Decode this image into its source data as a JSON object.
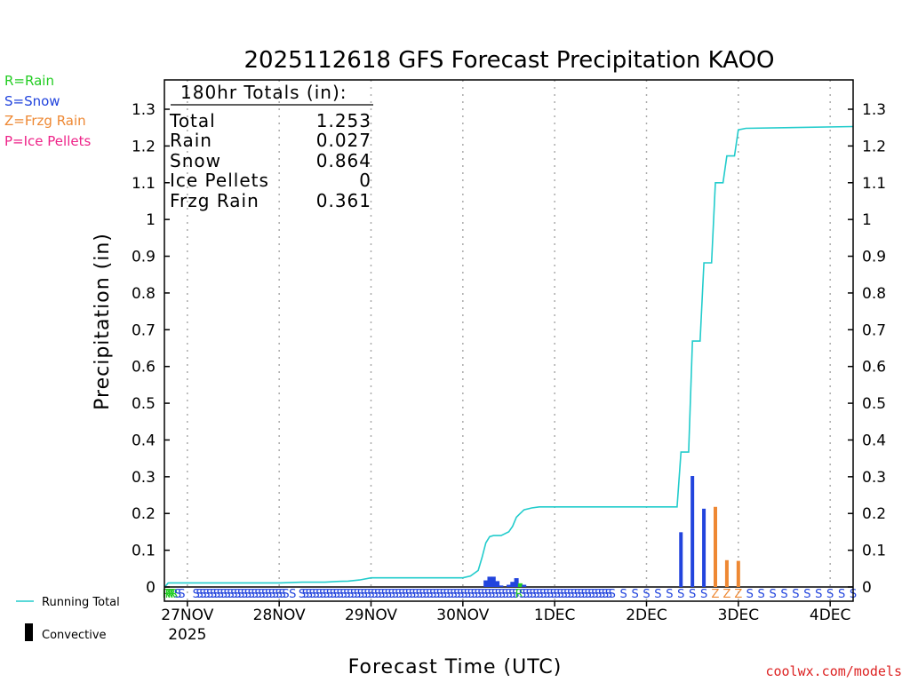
{
  "colors": {
    "rain": "#22cc22",
    "snow": "#2244dd",
    "frzg": "#ee8833",
    "ice": "#ee2288",
    "running_total": "#22cccc",
    "convective": "#000000",
    "watermark": "#dd2222"
  },
  "type_legend": [
    "R=Rain",
    "S=Snow",
    "Z=Frzg Rain",
    "P=Ice Pellets"
  ],
  "bottom_legend": {
    "running_total": "Running Total",
    "convective": "Convective"
  },
  "watermark": "coolwx.com/models",
  "totals_box": {
    "header": "180hr Totals (in):",
    "rows": [
      {
        "label": "Total",
        "value": "1.253"
      },
      {
        "label": "Rain",
        "value": "0.027"
      },
      {
        "label": "Snow",
        "value": "0.864"
      },
      {
        "label": "Ice Pellets",
        "value": "0"
      },
      {
        "label": "Frzg Rain",
        "value": "0.361"
      }
    ]
  },
  "chart_data": {
    "type": "bar",
    "title": "2025112618 GFS Forecast Precipitation KAOO",
    "xlabel": "Forecast Time (UTC)",
    "ylabel": "Precipitation (in)",
    "ylim": [
      0,
      1.35
    ],
    "yticks": [
      0,
      0.1,
      0.2,
      0.3,
      0.4,
      0.5,
      0.6,
      0.7,
      0.8,
      0.9,
      1,
      1.1,
      1.2,
      1.3
    ],
    "ytick_labels": [
      "0",
      "0.1",
      "0.2",
      "0.3",
      "0.4",
      "0.5",
      "0.6",
      "0.7",
      "0.8",
      "0.9",
      "1",
      "1.1",
      "1.2",
      "1.3"
    ],
    "x_unit": "forecast hour",
    "xlim": [
      0,
      180
    ],
    "day_ticks": [
      {
        "hour": 6,
        "label": "27NOV",
        "sub": "2025"
      },
      {
        "hour": 30,
        "label": "28NOV"
      },
      {
        "hour": 54,
        "label": "29NOV"
      },
      {
        "hour": 78,
        "label": "30NOV"
      },
      {
        "hour": 102,
        "label": "1DEC"
      },
      {
        "hour": 126,
        "label": "2DEC"
      },
      {
        "hour": 150,
        "label": "3DEC"
      },
      {
        "hour": 174,
        "label": "4DEC"
      }
    ],
    "bars": [
      {
        "hour": 84,
        "value": 0.018,
        "ptype": "S"
      },
      {
        "hour": 85,
        "value": 0.028,
        "ptype": "S"
      },
      {
        "hour": 86,
        "value": 0.028,
        "ptype": "S"
      },
      {
        "hour": 87,
        "value": 0.016,
        "ptype": "S"
      },
      {
        "hour": 88,
        "value": 0.004,
        "ptype": "S"
      },
      {
        "hour": 90,
        "value": 0.006,
        "ptype": "S"
      },
      {
        "hour": 91,
        "value": 0.014,
        "ptype": "S"
      },
      {
        "hour": 92,
        "value": 0.024,
        "ptype": "S"
      },
      {
        "hour": 93,
        "value": 0.01,
        "ptype": "R"
      },
      {
        "hour": 94,
        "value": 0.006,
        "ptype": "S"
      },
      {
        "hour": 135,
        "value": 0.149,
        "ptype": "S"
      },
      {
        "hour": 138,
        "value": 0.302,
        "ptype": "S"
      },
      {
        "hour": 141,
        "value": 0.213,
        "ptype": "S"
      },
      {
        "hour": 144,
        "value": 0.218,
        "ptype": "Z"
      },
      {
        "hour": 147,
        "value": 0.073,
        "ptype": "Z"
      },
      {
        "hour": 150,
        "value": 0.071,
        "ptype": "Z"
      }
    ],
    "running_total": [
      [
        0,
        0
      ],
      [
        0.5,
        0.005
      ],
      [
        1,
        0.011
      ],
      [
        12,
        0.011
      ],
      [
        24,
        0.011
      ],
      [
        30,
        0.011
      ],
      [
        36,
        0.013
      ],
      [
        42,
        0.013
      ],
      [
        45,
        0.015
      ],
      [
        48,
        0.016
      ],
      [
        51,
        0.019
      ],
      [
        54,
        0.025
      ],
      [
        60,
        0.025
      ],
      [
        78,
        0.025
      ],
      [
        80,
        0.03
      ],
      [
        82,
        0.045
      ],
      [
        83,
        0.08
      ],
      [
        84,
        0.12
      ],
      [
        85,
        0.137
      ],
      [
        86,
        0.14
      ],
      [
        88,
        0.14
      ],
      [
        90,
        0.15
      ],
      [
        91,
        0.165
      ],
      [
        92,
        0.19
      ],
      [
        93,
        0.2
      ],
      [
        94,
        0.21
      ],
      [
        96,
        0.215
      ],
      [
        98,
        0.218
      ],
      [
        134,
        0.218
      ],
      [
        135,
        0.367
      ],
      [
        137,
        0.367
      ],
      [
        138,
        0.669
      ],
      [
        140,
        0.669
      ],
      [
        141,
        0.882
      ],
      [
        143,
        0.882
      ],
      [
        144,
        1.1
      ],
      [
        146,
        1.1
      ],
      [
        147,
        1.173
      ],
      [
        149,
        1.173
      ],
      [
        150,
        1.244
      ],
      [
        152,
        1.248
      ],
      [
        180,
        1.253
      ]
    ],
    "ptype_strip": [
      {
        "hour": 0.5,
        "t": "R"
      },
      {
        "hour": 1.2,
        "t": "R"
      },
      {
        "hour": 1.9,
        "t": "R"
      },
      {
        "hour": 2.6,
        "t": "R"
      },
      {
        "hour": 3.5,
        "t": "S"
      },
      {
        "hour": 4.5,
        "t": "S"
      },
      {
        "hour": 8.3,
        "t": "S"
      },
      {
        "hour": 9.2,
        "t": "S"
      },
      {
        "hour": 10.1,
        "t": "S"
      },
      {
        "hour": 11,
        "t": "S"
      },
      {
        "hour": 11.9,
        "t": "S"
      },
      {
        "hour": 12.8,
        "t": "S"
      },
      {
        "hour": 13.7,
        "t": "S"
      },
      {
        "hour": 14.6,
        "t": "S"
      },
      {
        "hour": 15.5,
        "t": "S"
      },
      {
        "hour": 16.4,
        "t": "S"
      },
      {
        "hour": 17.3,
        "t": "S"
      },
      {
        "hour": 18.2,
        "t": "S"
      },
      {
        "hour": 19.1,
        "t": "S"
      },
      {
        "hour": 20,
        "t": "S"
      },
      {
        "hour": 20.9,
        "t": "S"
      },
      {
        "hour": 21.8,
        "t": "S"
      },
      {
        "hour": 22.7,
        "t": "S"
      },
      {
        "hour": 23.6,
        "t": "S"
      },
      {
        "hour": 24.5,
        "t": "S"
      },
      {
        "hour": 25.4,
        "t": "S"
      },
      {
        "hour": 26.3,
        "t": "S"
      },
      {
        "hour": 27.2,
        "t": "S"
      },
      {
        "hour": 28.1,
        "t": "S"
      },
      {
        "hour": 29,
        "t": "S"
      },
      {
        "hour": 29.9,
        "t": "S"
      },
      {
        "hour": 30.8,
        "t": "S"
      },
      {
        "hour": 31.7,
        "t": "S"
      },
      {
        "hour": 33.5,
        "t": "S"
      },
      {
        "hour": 36,
        "t": "S"
      },
      {
        "hour": 36.9,
        "t": "S"
      },
      {
        "hour": 37.8,
        "t": "S"
      },
      {
        "hour": 38.7,
        "t": "S"
      },
      {
        "hour": 39.6,
        "t": "S"
      },
      {
        "hour": 40.5,
        "t": "S"
      },
      {
        "hour": 41.4,
        "t": "S"
      },
      {
        "hour": 42.3,
        "t": "S"
      },
      {
        "hour": 43.2,
        "t": "S"
      },
      {
        "hour": 44.1,
        "t": "S"
      },
      {
        "hour": 45,
        "t": "S"
      },
      {
        "hour": 45.9,
        "t": "S"
      },
      {
        "hour": 46.8,
        "t": "S"
      },
      {
        "hour": 47.7,
        "t": "S"
      },
      {
        "hour": 48.6,
        "t": "S"
      },
      {
        "hour": 49.5,
        "t": "S"
      },
      {
        "hour": 50.4,
        "t": "S"
      },
      {
        "hour": 51.3,
        "t": "S"
      },
      {
        "hour": 52.2,
        "t": "S"
      },
      {
        "hour": 53.1,
        "t": "S"
      },
      {
        "hour": 54,
        "t": "S"
      },
      {
        "hour": 54.9,
        "t": "S"
      },
      {
        "hour": 55.8,
        "t": "S"
      },
      {
        "hour": 56.7,
        "t": "S"
      },
      {
        "hour": 57.6,
        "t": "S"
      },
      {
        "hour": 58.5,
        "t": "S"
      },
      {
        "hour": 59.4,
        "t": "S"
      },
      {
        "hour": 60.3,
        "t": "S"
      },
      {
        "hour": 61.2,
        "t": "S"
      },
      {
        "hour": 62.1,
        "t": "S"
      },
      {
        "hour": 63,
        "t": "S"
      },
      {
        "hour": 63.9,
        "t": "S"
      },
      {
        "hour": 64.8,
        "t": "S"
      },
      {
        "hour": 65.7,
        "t": "S"
      },
      {
        "hour": 66.6,
        "t": "S"
      },
      {
        "hour": 67.5,
        "t": "S"
      },
      {
        "hour": 68.4,
        "t": "S"
      },
      {
        "hour": 69.3,
        "t": "S"
      },
      {
        "hour": 70.2,
        "t": "S"
      },
      {
        "hour": 71.1,
        "t": "S"
      },
      {
        "hour": 72,
        "t": "S"
      },
      {
        "hour": 72.9,
        "t": "S"
      },
      {
        "hour": 73.8,
        "t": "S"
      },
      {
        "hour": 74.7,
        "t": "S"
      },
      {
        "hour": 75.6,
        "t": "S"
      },
      {
        "hour": 76.5,
        "t": "S"
      },
      {
        "hour": 77.4,
        "t": "S"
      },
      {
        "hour": 78.3,
        "t": "S"
      },
      {
        "hour": 79.2,
        "t": "S"
      },
      {
        "hour": 80.1,
        "t": "S"
      },
      {
        "hour": 81,
        "t": "S"
      },
      {
        "hour": 81.9,
        "t": "S"
      },
      {
        "hour": 82.8,
        "t": "S"
      },
      {
        "hour": 83.7,
        "t": "S"
      },
      {
        "hour": 84.6,
        "t": "S"
      },
      {
        "hour": 85.5,
        "t": "S"
      },
      {
        "hour": 86.4,
        "t": "S"
      },
      {
        "hour": 87.3,
        "t": "S"
      },
      {
        "hour": 88.2,
        "t": "S"
      },
      {
        "hour": 89.1,
        "t": "S"
      },
      {
        "hour": 90,
        "t": "S"
      },
      {
        "hour": 90.9,
        "t": "S"
      },
      {
        "hour": 91.8,
        "t": "S"
      },
      {
        "hour": 92.7,
        "t": "R"
      },
      {
        "hour": 93.6,
        "t": "S"
      },
      {
        "hour": 94.5,
        "t": "S"
      },
      {
        "hour": 95.4,
        "t": "S"
      },
      {
        "hour": 96.3,
        "t": "S"
      },
      {
        "hour": 97.2,
        "t": "S"
      },
      {
        "hour": 98.1,
        "t": "S"
      },
      {
        "hour": 99,
        "t": "S"
      },
      {
        "hour": 99.9,
        "t": "S"
      },
      {
        "hour": 100.8,
        "t": "S"
      },
      {
        "hour": 101.7,
        "t": "S"
      },
      {
        "hour": 102.6,
        "t": "S"
      },
      {
        "hour": 103.5,
        "t": "S"
      },
      {
        "hour": 104.4,
        "t": "S"
      },
      {
        "hour": 105.3,
        "t": "S"
      },
      {
        "hour": 106.2,
        "t": "S"
      },
      {
        "hour": 107.1,
        "t": "S"
      },
      {
        "hour": 108,
        "t": "S"
      },
      {
        "hour": 108.9,
        "t": "S"
      },
      {
        "hour": 109.8,
        "t": "S"
      },
      {
        "hour": 110.7,
        "t": "S"
      },
      {
        "hour": 111.6,
        "t": "S"
      },
      {
        "hour": 112.5,
        "t": "S"
      },
      {
        "hour": 113.4,
        "t": "S"
      },
      {
        "hour": 114.3,
        "t": "S"
      },
      {
        "hour": 115.2,
        "t": "S"
      },
      {
        "hour": 116.1,
        "t": "S"
      },
      {
        "hour": 117,
        "t": "S"
      },
      {
        "hour": 120,
        "t": "S"
      },
      {
        "hour": 123,
        "t": "S"
      },
      {
        "hour": 126,
        "t": "S"
      },
      {
        "hour": 129,
        "t": "S"
      },
      {
        "hour": 132,
        "t": "S"
      },
      {
        "hour": 135,
        "t": "S"
      },
      {
        "hour": 138,
        "t": "S"
      },
      {
        "hour": 141,
        "t": "S"
      },
      {
        "hour": 144,
        "t": "Z"
      },
      {
        "hour": 147,
        "t": "Z"
      },
      {
        "hour": 150,
        "t": "Z"
      },
      {
        "hour": 153,
        "t": "S"
      },
      {
        "hour": 156,
        "t": "S"
      },
      {
        "hour": 159,
        "t": "S"
      },
      {
        "hour": 162,
        "t": "S"
      },
      {
        "hour": 165,
        "t": "S"
      },
      {
        "hour": 168,
        "t": "S"
      },
      {
        "hour": 171,
        "t": "S"
      },
      {
        "hour": 174,
        "t": "S"
      },
      {
        "hour": 177,
        "t": "S"
      },
      {
        "hour": 180,
        "t": "S"
      }
    ]
  }
}
